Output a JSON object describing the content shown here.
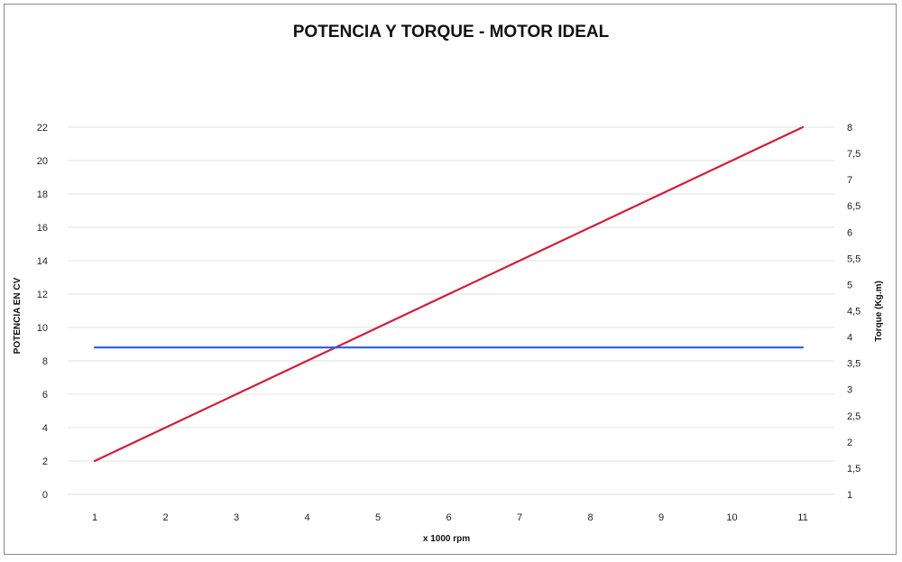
{
  "chart_data": {
    "type": "line",
    "title": "POTENCIA Y TORQUE - MOTOR IDEAL",
    "xlabel": "x 1000 rpm",
    "ylabel": "POTENCIA EN CV",
    "y2label": "Torque (Kg.m)",
    "x": [
      "1",
      "2",
      "3",
      "4",
      "5",
      "6",
      "7",
      "8",
      "9",
      "10",
      "11"
    ],
    "ylim": [
      0,
      22
    ],
    "y_ticks": [
      "0",
      "2",
      "4",
      "6",
      "8",
      "10",
      "12",
      "14",
      "16",
      "18",
      "20",
      "22"
    ],
    "y2lim": [
      1,
      8
    ],
    "y2_ticks": [
      "1",
      "1,5",
      "2",
      "2,5",
      "3",
      "3,5",
      "4",
      "4,5",
      "5",
      "5,5",
      "6",
      "6,5",
      "7",
      "7,5",
      "8"
    ],
    "grid": true,
    "series": [
      {
        "axis": "left",
        "color": "#d01e3c",
        "values": [
          2,
          4,
          6,
          8,
          10,
          12,
          14,
          16,
          18,
          20,
          22
        ]
      },
      {
        "axis": "right",
        "color": "#2b5fd9",
        "values": [
          3.8,
          3.8,
          3.8,
          3.8,
          3.8,
          3.8,
          3.8,
          3.8,
          3.8,
          3.8,
          3.8
        ]
      }
    ]
  }
}
